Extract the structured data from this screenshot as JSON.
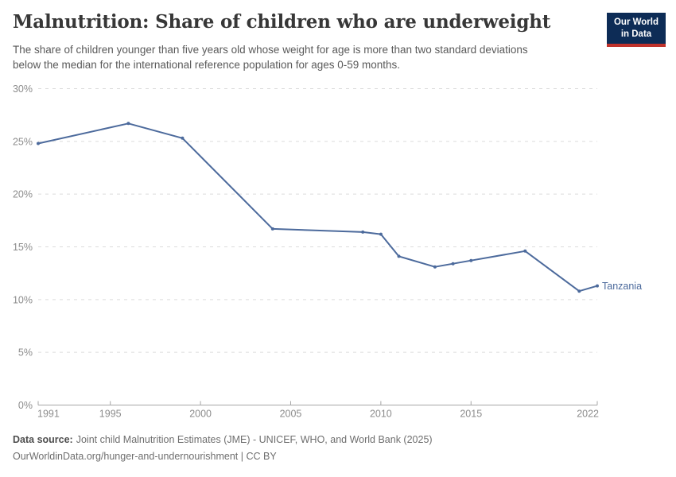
{
  "header": {
    "title": "Malnutrition: Share of children who are underweight",
    "subtitle_line1": "The share of children younger than five years old whose weight for age is more than two standard deviations",
    "subtitle_line2": "below the median for the international reference population for ages 0-59 months.",
    "logo": {
      "line1": "Our World",
      "line2": "in Data",
      "bg_color": "#0d2c56",
      "accent_color": "#c0322b"
    }
  },
  "chart_data": {
    "type": "line",
    "title": "Malnutrition: Share of children who are underweight",
    "xlabel": "",
    "ylabel": "",
    "xlim": [
      1991,
      2022
    ],
    "ylim": [
      0,
      30
    ],
    "x_ticks": [
      1991,
      1995,
      2000,
      2005,
      2010,
      2015,
      2022
    ],
    "y_ticks": [
      0,
      5,
      10,
      15,
      20,
      25,
      30
    ],
    "y_tick_suffix": "%",
    "grid": "horizontal-dashed",
    "legend_position": "end-of-line-label",
    "series": [
      {
        "name": "Tanzania",
        "color": "#4c6a9c",
        "x": [
          1991,
          1996,
          1999,
          2004,
          2009,
          2010,
          2011,
          2013,
          2014,
          2015,
          2018,
          2021,
          2022
        ],
        "values": [
          24.8,
          26.7,
          25.3,
          16.7,
          16.4,
          16.2,
          14.1,
          13.1,
          13.4,
          13.7,
          14.6,
          10.8,
          11.3
        ]
      }
    ]
  },
  "chart_style": {
    "grid_color": "#dcdcdc",
    "axis_color": "#a6a6a6",
    "tick_label_color": "#8c8c8c"
  },
  "footer": {
    "source_label": "Data source:",
    "source_text": "Joint child Malnutrition Estimates (JME) - UNICEF, WHO, and World Bank (2025)",
    "url_line": "OurWorldinData.org/hunger-and-undernourishment | CC BY"
  }
}
